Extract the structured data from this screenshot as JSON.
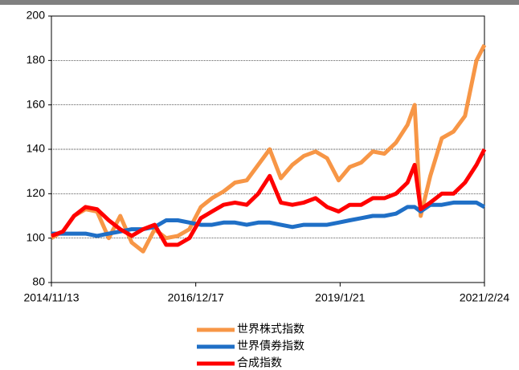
{
  "chart_data": {
    "type": "line",
    "x": [
      "2014/11/13",
      "2015/1/13",
      "2015/3/13",
      "2015/5/13",
      "2015/7/13",
      "2015/9/13",
      "2015/11/13",
      "2016/1/13",
      "2016/3/13",
      "2016/5/13",
      "2016/7/13",
      "2016/9/13",
      "2016/11/13",
      "2017/1/13",
      "2017/3/13",
      "2017/5/13",
      "2017/7/13",
      "2017/9/13",
      "2017/11/13",
      "2018/1/13",
      "2018/3/13",
      "2018/5/13",
      "2018/7/13",
      "2018/9/13",
      "2018/11/13",
      "2019/1/13",
      "2019/3/13",
      "2019/5/13",
      "2019/7/13",
      "2019/9/13",
      "2019/11/13",
      "2020/1/13",
      "2020/2/20",
      "2020/3/23",
      "2020/5/13",
      "2020/7/13",
      "2020/9/13",
      "2020/11/13",
      "2021/1/13",
      "2021/2/24"
    ],
    "series": [
      {
        "name": "世界株式指数",
        "color": "#f79646",
        "values": [
          100,
          103,
          110,
          113,
          112,
          100,
          110,
          98,
          94,
          104,
          100,
          101,
          104,
          114,
          118,
          121,
          125,
          126,
          133,
          140,
          127,
          133,
          137,
          139,
          136,
          126,
          132,
          134,
          139,
          138,
          143,
          151,
          160,
          110,
          128,
          145,
          148,
          155,
          180,
          187
        ]
      },
      {
        "name": "世界債券指数",
        "color": "#1f6fc6",
        "values": [
          102,
          102,
          102,
          102,
          101,
          102,
          103,
          104,
          104,
          105,
          108,
          108,
          107,
          106,
          106,
          107,
          107,
          106,
          107,
          107,
          106,
          105,
          106,
          106,
          106,
          107,
          108,
          109,
          110,
          110,
          111,
          114,
          114,
          112,
          115,
          115,
          116,
          116,
          116,
          114
        ]
      },
      {
        "name": "合成指数",
        "color": "#ff0000",
        "values": [
          101,
          103,
          110,
          114,
          113,
          108,
          104,
          101,
          104,
          106,
          97,
          97,
          100,
          109,
          112,
          115,
          116,
          115,
          120,
          128,
          116,
          115,
          116,
          118,
          114,
          112,
          115,
          115,
          118,
          118,
          120,
          125,
          133,
          113,
          116,
          120,
          120,
          125,
          133,
          140
        ]
      }
    ],
    "ylim": [
      80,
      200
    ],
    "yticks": [
      80,
      100,
      120,
      140,
      160,
      180,
      200
    ],
    "xlim": [
      "2014/11/13",
      "2021/2/24"
    ],
    "xticks": [
      "2014/11/13",
      "2016/12/17",
      "2019/1/21",
      "2021/2/24"
    ],
    "grid": true
  }
}
